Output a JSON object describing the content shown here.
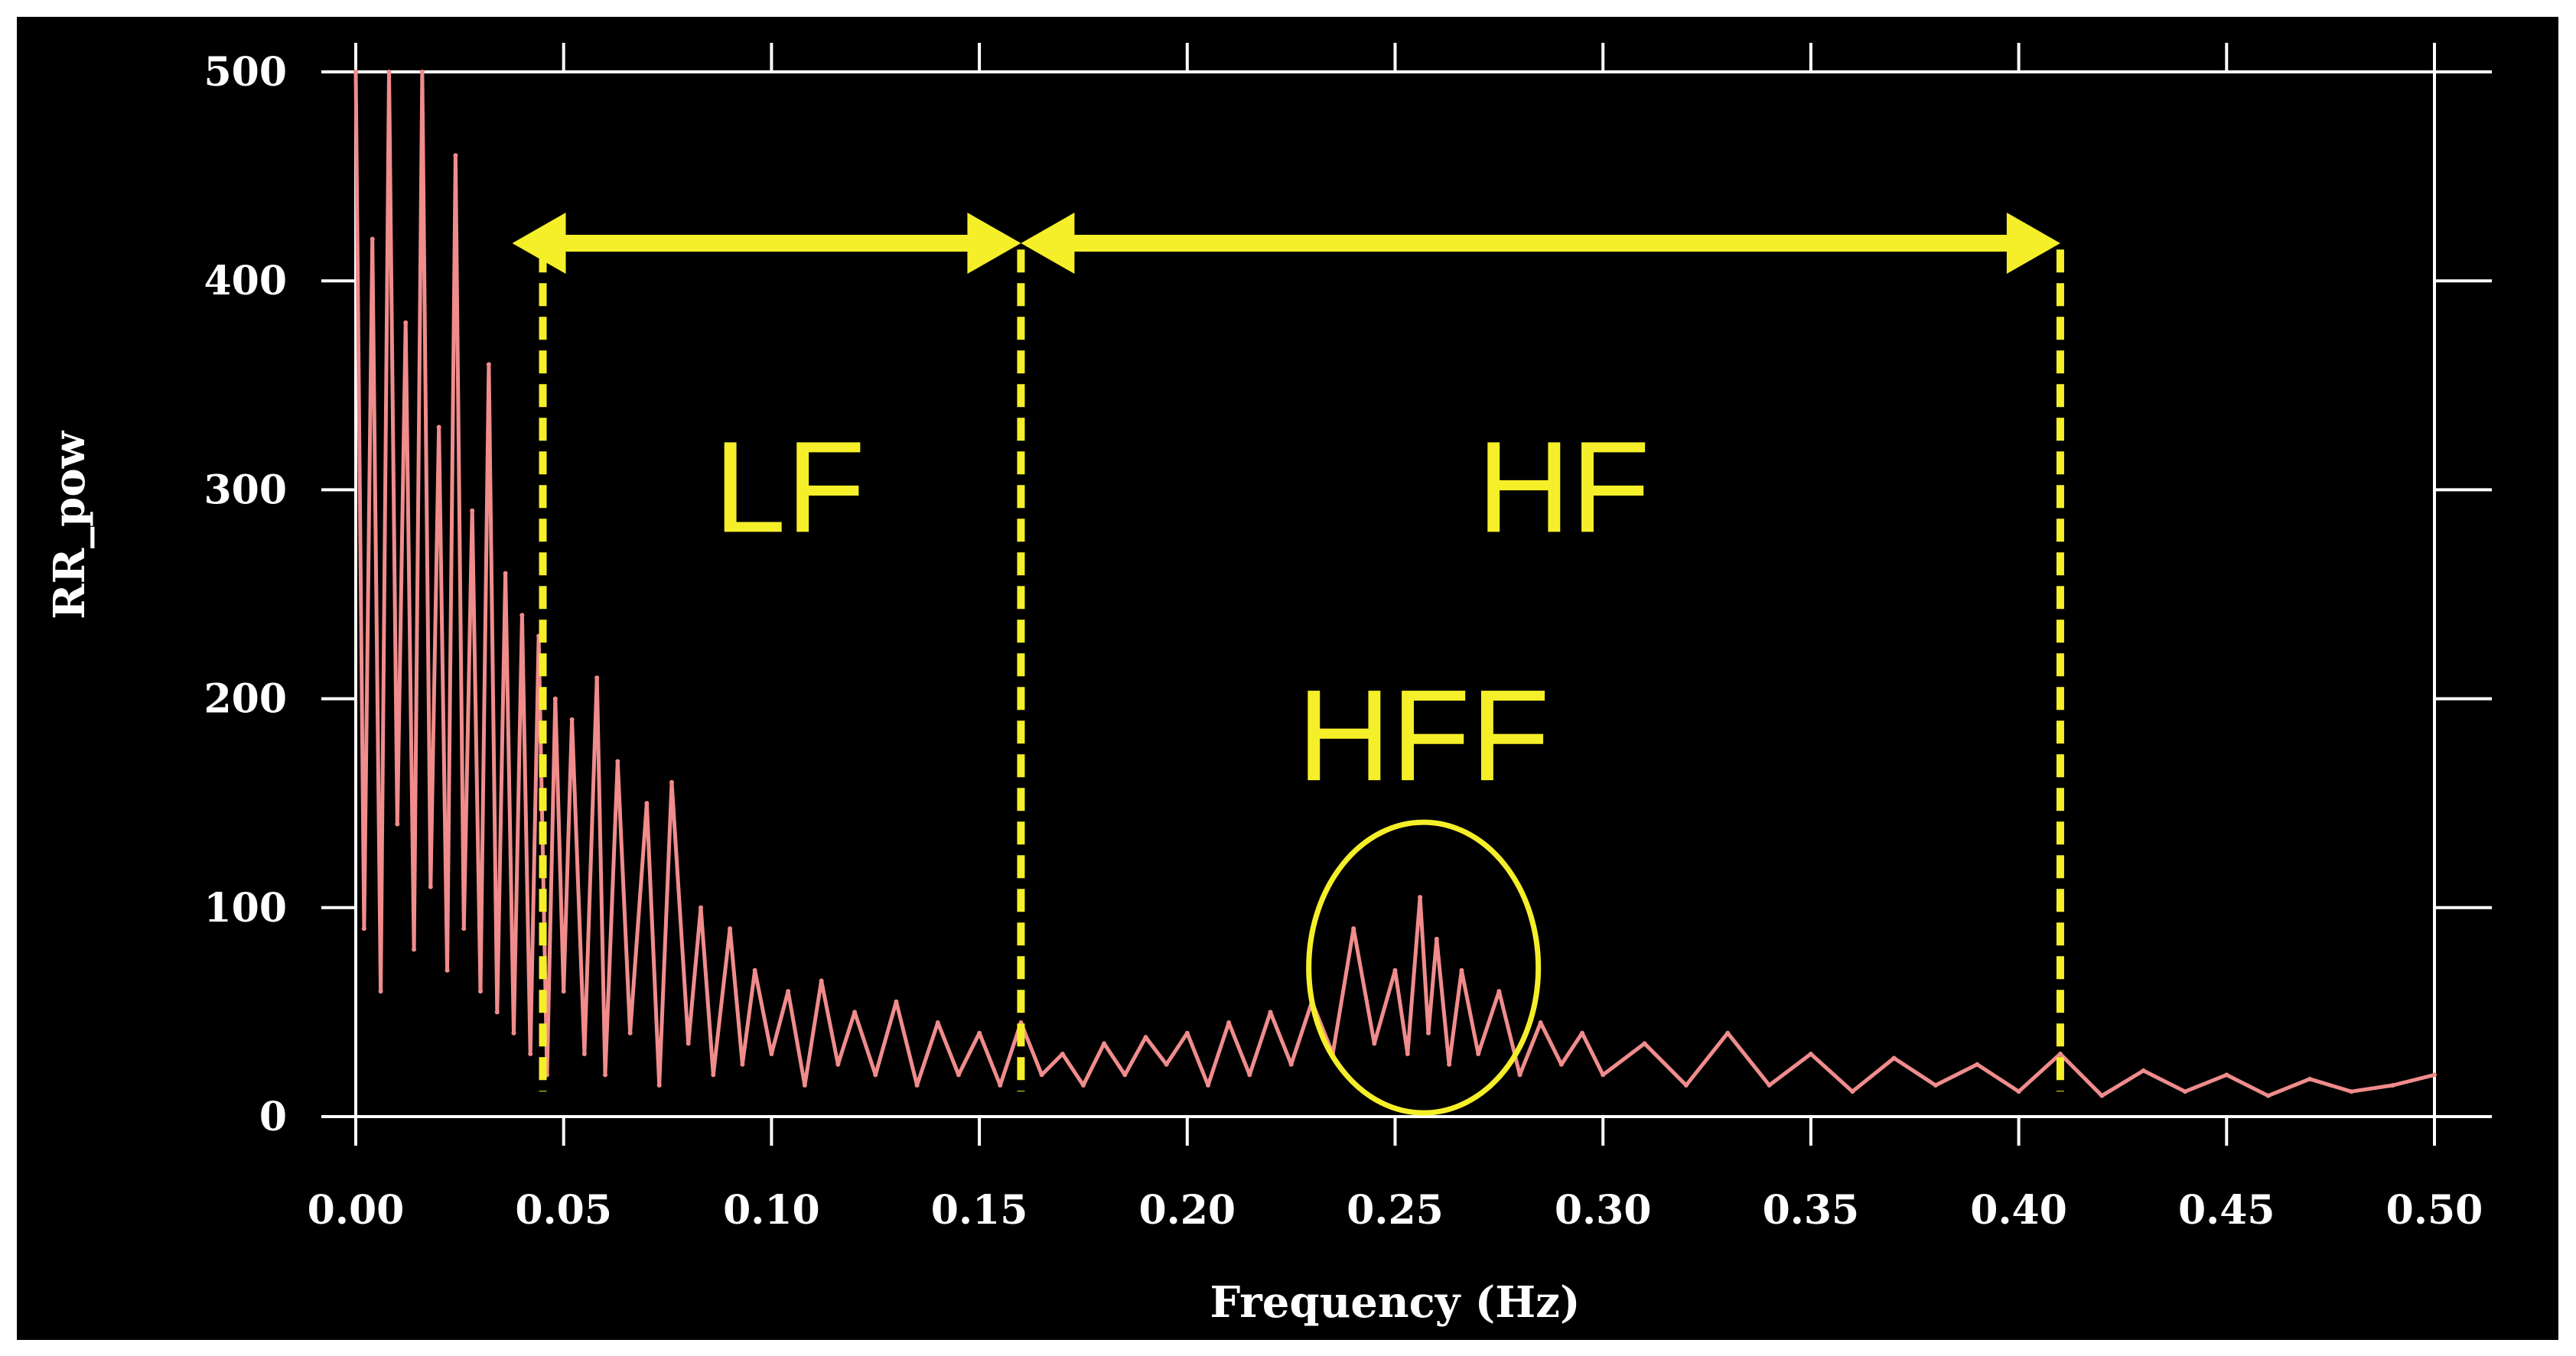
{
  "chart_data": {
    "type": "line",
    "title": "",
    "xlabel": "Frequency (Hz)",
    "ylabel": "RR_pow",
    "xlim": [
      0,
      0.5
    ],
    "ylim": [
      0,
      500
    ],
    "x_ticks": [
      "0.00",
      "0.05",
      "0.10",
      "0.15",
      "0.20",
      "0.25",
      "0.30",
      "0.35",
      "0.40",
      "0.45",
      "0.50"
    ],
    "y_ticks": [
      "0",
      "100",
      "200",
      "300",
      "400",
      "500"
    ],
    "grid": false,
    "series": [
      {
        "color": "#f08c8c",
        "x": [
          0.0,
          0.002,
          0.004,
          0.006,
          0.008,
          0.01,
          0.012,
          0.014,
          0.016,
          0.018,
          0.02,
          0.022,
          0.024,
          0.026,
          0.028,
          0.03,
          0.032,
          0.034,
          0.036,
          0.038,
          0.04,
          0.042,
          0.044,
          0.046,
          0.048,
          0.05,
          0.052,
          0.055,
          0.058,
          0.06,
          0.063,
          0.066,
          0.07,
          0.073,
          0.076,
          0.08,
          0.083,
          0.086,
          0.09,
          0.093,
          0.096,
          0.1,
          0.104,
          0.108,
          0.112,
          0.116,
          0.12,
          0.125,
          0.13,
          0.135,
          0.14,
          0.145,
          0.15,
          0.155,
          0.16,
          0.165,
          0.17,
          0.175,
          0.18,
          0.185,
          0.19,
          0.195,
          0.2,
          0.205,
          0.21,
          0.215,
          0.22,
          0.225,
          0.23,
          0.235,
          0.24,
          0.245,
          0.25,
          0.253,
          0.256,
          0.258,
          0.26,
          0.263,
          0.266,
          0.27,
          0.275,
          0.28,
          0.285,
          0.29,
          0.295,
          0.3,
          0.31,
          0.32,
          0.33,
          0.34,
          0.35,
          0.36,
          0.37,
          0.38,
          0.39,
          0.4,
          0.41,
          0.42,
          0.43,
          0.44,
          0.45,
          0.46,
          0.47,
          0.48,
          0.49,
          0.5
        ],
        "y": [
          500,
          90,
          420,
          60,
          500,
          140,
          380,
          80,
          500,
          110,
          330,
          70,
          460,
          90,
          290,
          60,
          360,
          50,
          260,
          40,
          240,
          30,
          230,
          20,
          200,
          60,
          190,
          30,
          210,
          20,
          170,
          40,
          150,
          15,
          160,
          35,
          100,
          20,
          90,
          25,
          70,
          30,
          60,
          15,
          65,
          25,
          50,
          20,
          55,
          15,
          45,
          20,
          40,
          15,
          45,
          20,
          30,
          15,
          35,
          20,
          38,
          25,
          40,
          15,
          45,
          20,
          50,
          25,
          55,
          30,
          90,
          35,
          70,
          30,
          105,
          40,
          85,
          25,
          70,
          30,
          60,
          20,
          45,
          25,
          40,
          20,
          35,
          15,
          40,
          15,
          30,
          12,
          28,
          15,
          25,
          12,
          30,
          10,
          22,
          12,
          20,
          10,
          18,
          12,
          15,
          20
        ]
      }
    ],
    "annotations": {
      "bands": [
        {
          "label": "LF",
          "from": 0.045,
          "to": 0.16
        },
        {
          "label": "HF",
          "from": 0.16,
          "to": 0.41
        }
      ],
      "highlight": {
        "label": "HFF",
        "center": 0.255,
        "value": 75
      }
    },
    "colors": {
      "background": "#000000",
      "axes": "#ffffff",
      "series": "#f08c8c",
      "annotation": "#f5ef2a"
    }
  }
}
